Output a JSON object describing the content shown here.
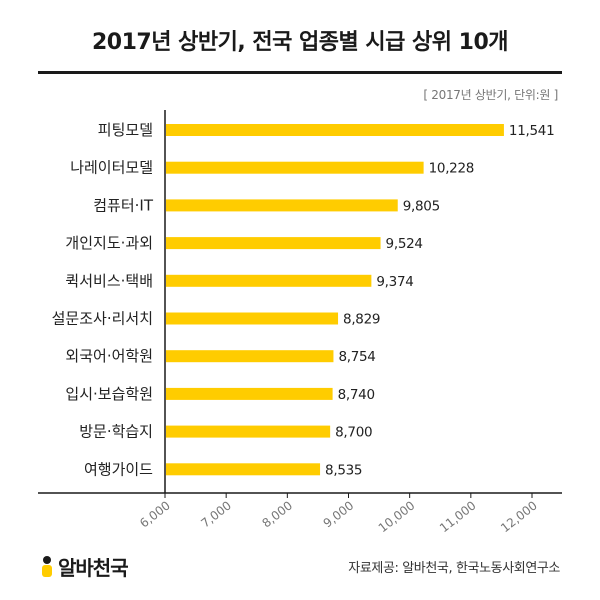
{
  "header": {
    "title": "2017년 상반기, 전국 업종별 시급 상위 10개",
    "unit_note": "[ 2017년 상반기, 단위:원 ]"
  },
  "chart_data": {
    "type": "bar",
    "orientation": "horizontal",
    "title": "2017년 상반기, 전국 업종별 시급 상위 10개",
    "categories": [
      "피팅모델",
      "나레이터모델",
      "컴퓨터·IT",
      "개인지도·과외",
      "퀵서비스·택배",
      "설문조사·리서치",
      "외국어·어학원",
      "입시·보습학원",
      "방문·학습지",
      "여행가이드"
    ],
    "values": [
      11541,
      10228,
      9805,
      9524,
      9374,
      8829,
      8754,
      8740,
      8700,
      8535
    ],
    "value_labels": [
      "11,541",
      "10,228",
      "9,805",
      "9,524",
      "9,374",
      "8,829",
      "8,754",
      "8,740",
      "8,700",
      "8,535"
    ],
    "xlim": [
      6000,
      12000
    ],
    "x_ticks": [
      6000,
      7000,
      8000,
      9000,
      10000,
      11000,
      12000
    ],
    "x_tick_labels": [
      "6,000",
      "7,000",
      "8,000",
      "9,000",
      "10,000",
      "11,000",
      "12,000"
    ],
    "grid": false,
    "bar_color": "#ffcc00",
    "axis_color": "#1a1a1a"
  },
  "footer": {
    "brand_name": "알바천국",
    "brand_icon": "albachunguk-logo-icon",
    "source": "자료제공: 알바천국, 한국노동사회연구소"
  }
}
